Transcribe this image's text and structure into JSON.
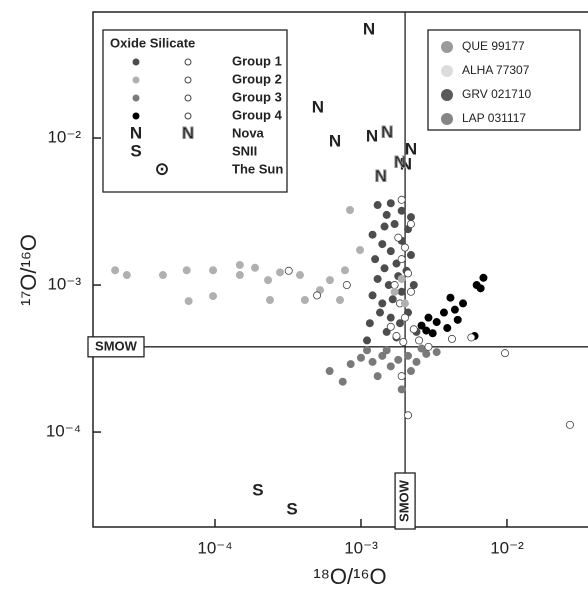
{
  "chart_data": {
    "type": "scatter",
    "x_label": "¹⁸O/¹⁶O",
    "y_label": "¹⁷O/¹⁶O",
    "x_log": true,
    "y_log": true,
    "xlim": [
      1.46e-05,
      0.0359
    ],
    "ylim": [
      2.26e-05,
      0.072
    ],
    "xticks": [
      {
        "value": 0.0001,
        "label": "10⁻⁴"
      },
      {
        "value": 0.001,
        "label": "10⁻³"
      },
      {
        "value": 0.01,
        "label": "10⁻²"
      }
    ],
    "yticks": [
      {
        "value": 0.0001,
        "label": "10⁻⁴"
      },
      {
        "value": 0.001,
        "label": "10⁻³"
      },
      {
        "value": 0.01,
        "label": "10⁻²"
      }
    ],
    "smow": {
      "label": "SMOW",
      "x": 0.0020052,
      "y": 0.0003799
    },
    "legend_title": "Oxide Silicate",
    "series": [
      {
        "name": "Group 1",
        "marker": "circle",
        "color": "#4d4d4d",
        "oxide": {
          "x": [
            0.0013,
            0.0015,
            0.0017,
            0.0012,
            0.0014,
            0.0016,
            0.0019,
            0.0021,
            0.00125,
            0.00145,
            0.00175,
            0.0022,
            0.0013,
            0.00155,
            0.0018,
            0.00205,
            0.0012,
            0.0014,
            0.00165,
            0.0019,
            0.0023,
            0.00135,
            0.0016,
            0.00185,
            0.0021,
            0.00115,
            0.0015,
            0.00175,
            0.0024,
            0.0011,
            0.0016,
            0.0019,
            0.00145,
            0.0022
          ],
          "y": [
            0.0035,
            0.003,
            0.0026,
            0.0022,
            0.0019,
            0.0017,
            0.002,
            0.0024,
            0.0015,
            0.0013,
            0.0014,
            0.0016,
            0.0011,
            0.001,
            0.00115,
            0.00125,
            0.00085,
            0.00075,
            0.0008,
            0.0009,
            0.001,
            0.00065,
            0.0006,
            0.00055,
            0.00065,
            0.00055,
            0.00048,
            0.00044,
            0.00048,
            0.00042,
            0.0036,
            0.0032,
            0.0025,
            0.0029
          ]
        },
        "silicate": {
          "x": [
            0.0018,
            0.002,
            0.0019,
            0.0021,
            0.0017,
            0.0022,
            0.00185,
            0.002,
            0.0016,
            0.0023,
            0.00175,
            0.0025,
            0.00195,
            0.0022,
            0.0019
          ],
          "y": [
            0.0021,
            0.0018,
            0.0015,
            0.0012,
            0.001,
            0.0009,
            0.00075,
            0.0006,
            0.00052,
            0.0005,
            0.00045,
            0.00042,
            0.00041,
            0.0026,
            0.0038
          ]
        }
      },
      {
        "name": "Group 2",
        "marker": "circle",
        "color": "#b0b0b0",
        "oxide": {
          "x": [
            2.07e-05,
            2.49e-05,
            4.4e-05,
            6.4e-05,
            6.6e-05,
            9.7e-05,
            9.7e-05,
            0.000148,
            0.000148,
            0.000188,
            0.000231,
            0.000279,
            0.000238,
            0.000382,
            0.000413,
            0.000524,
            0.000613,
            0.000777,
            0.000718,
            0.000841,
            0.000985,
            0.0017,
            0.0019,
            0.002
          ],
          "y": [
            0.00126,
            0.00117,
            0.00117,
            0.00126,
            0.000778,
            0.00126,
            0.000841,
            0.00137,
            0.00117,
            0.00131,
            0.00108,
            0.00122,
            0.000791,
            0.00117,
            0.000791,
            0.000924,
            0.00108,
            0.00126,
            0.000791,
            0.00324,
            0.00173,
            0.0009,
            0.0011,
            0.00075
          ]
        },
        "silicate": {
          "x": [
            0.0005,
            0.00032,
            0.0008
          ],
          "y": [
            0.00085,
            0.00125,
            0.001
          ]
        }
      },
      {
        "name": "Group 3",
        "marker": "circle",
        "color": "#7a7a7a",
        "oxide": {
          "x": [
            0.00061,
            0.00075,
            0.00085,
            0.001,
            0.0012,
            0.0014,
            0.0016,
            0.0018,
            0.0021,
            0.0024,
            0.0028,
            0.0033,
            0.0013,
            0.0019,
            0.0022,
            0.0015,
            0.0011,
            0.0026
          ],
          "y": [
            0.00026,
            0.00022,
            0.00029,
            0.00032,
            0.0003,
            0.00033,
            0.00028,
            0.00031,
            0.00033,
            0.0003,
            0.00034,
            0.00035,
            0.00024,
            0.000195,
            0.00026,
            0.00036,
            0.00036,
            0.00037
          ]
        },
        "silicate": {
          "x": [
            0.0021,
            0.0019,
            0.0029
          ],
          "y": [
            0.00013,
            0.00024,
            0.00038
          ]
        }
      },
      {
        "name": "Group 4",
        "marker": "circle",
        "color": "#000000",
        "oxide": {
          "x": [
            0.0069,
            0.0062,
            0.0066,
            0.005,
            0.0044,
            0.0046,
            0.0037,
            0.0033,
            0.0029,
            0.0026,
            0.0031,
            0.0039,
            0.006,
            0.0028,
            0.0041
          ],
          "y": [
            0.00112,
            0.001,
            0.00095,
            0.00075,
            0.00068,
            0.00058,
            0.00065,
            0.00056,
            0.0006,
            0.00053,
            0.00047,
            0.00051,
            0.00045,
            0.00049,
            0.00082
          ]
        },
        "silicate": {
          "x": [
            0.0097,
            0.0057,
            0.0042,
            0.027
          ],
          "y": [
            0.000344,
            0.00044,
            0.00043,
            0.000112
          ]
        }
      },
      {
        "name": "Nova",
        "marker": "N",
        "color": "#555555",
        "oxide": {
          "x": [
            0.001135,
            0.000507,
            0.000664,
            0.00119,
            0.0022,
            0.00203
          ],
          "y": [
            0.0543,
            0.016,
            0.0094,
            0.0102,
            0.0083,
            0.00655
          ]
        },
        "silicate": {
          "x": [
            0.00151,
            0.00185,
            0.00137
          ],
          "y": [
            0.0108,
            0.00676,
            0.00543
          ]
        }
      },
      {
        "name": "SNII",
        "marker": "S",
        "color": "#777777",
        "oxide": {
          "x": [
            0.000197,
            0.000337
          ],
          "y": [
            3.97e-05,
            2.94e-05
          ]
        }
      },
      {
        "name": "The Sun",
        "marker": "⊙",
        "color": "#555555"
      }
    ],
    "meteorites": [
      {
        "name": "QUE 99177",
        "color": "#9a9a9a"
      },
      {
        "name": "ALHA 77307",
        "color": "#dcdcdc"
      },
      {
        "name": "GRV 021710",
        "color": "#5a5a5a"
      },
      {
        "name": "LAP 031117",
        "color": "#858585"
      }
    ]
  }
}
